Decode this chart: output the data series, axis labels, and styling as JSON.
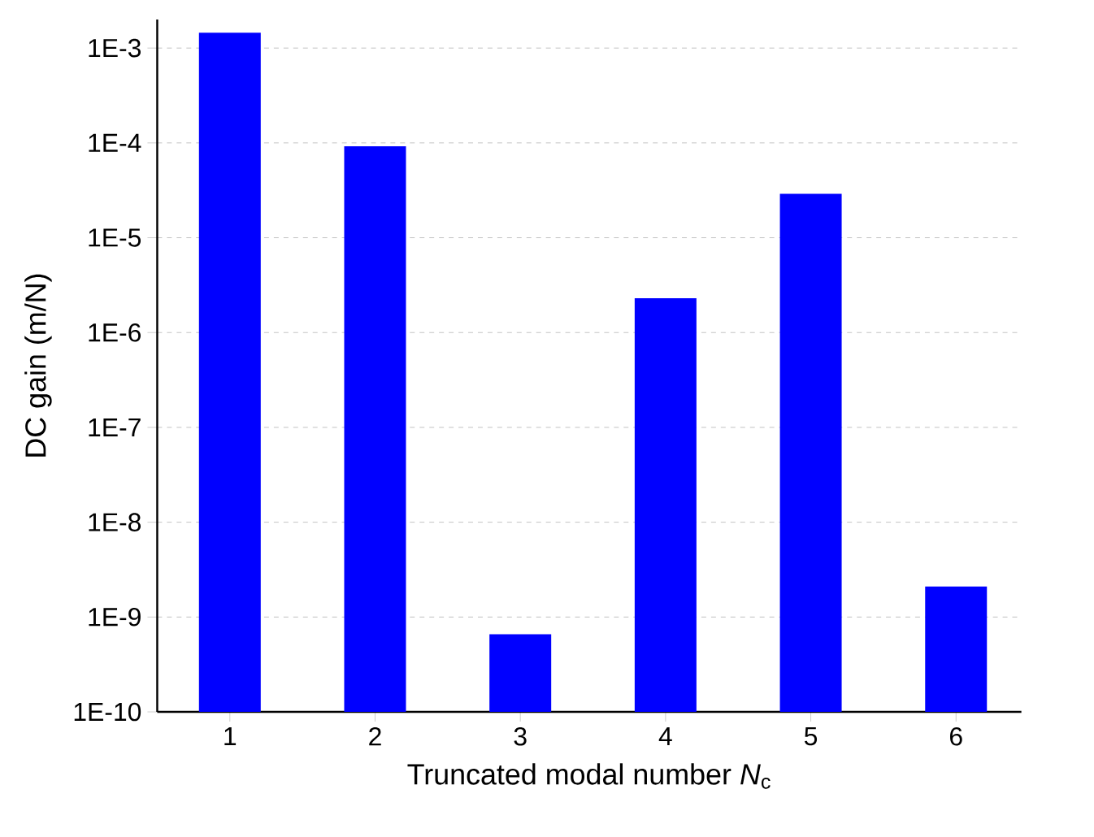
{
  "chart_data": {
    "type": "bar",
    "xlabel": "Truncated modal number *N*$_{c}$",
    "ylabel": "DC gain (m/N)",
    "categories": [
      "1",
      "2",
      "3",
      "4",
      "5",
      "6"
    ],
    "values": [
      0.00145,
      9.2e-05,
      6.6e-10,
      2.3e-06,
      2.9e-05,
      2.1e-09
    ],
    "color": "#0000ff",
    "log": "y",
    "ylim": [
      1e-10,
      0.002
    ],
    "yticks": [
      {
        "value": 1e-10,
        "label": "1E-10"
      },
      {
        "value": 1e-09,
        "label": "1E-9"
      },
      {
        "value": 1e-08,
        "label": "1E-8"
      },
      {
        "value": 1e-07,
        "label": "1E-7"
      },
      {
        "value": 1e-06,
        "label": "1E-6"
      },
      {
        "value": 1e-05,
        "label": "1E-5"
      },
      {
        "value": 0.0001,
        "label": "1E-4"
      },
      {
        "value": 0.001,
        "label": "1E-3"
      }
    ],
    "grid": "y"
  }
}
